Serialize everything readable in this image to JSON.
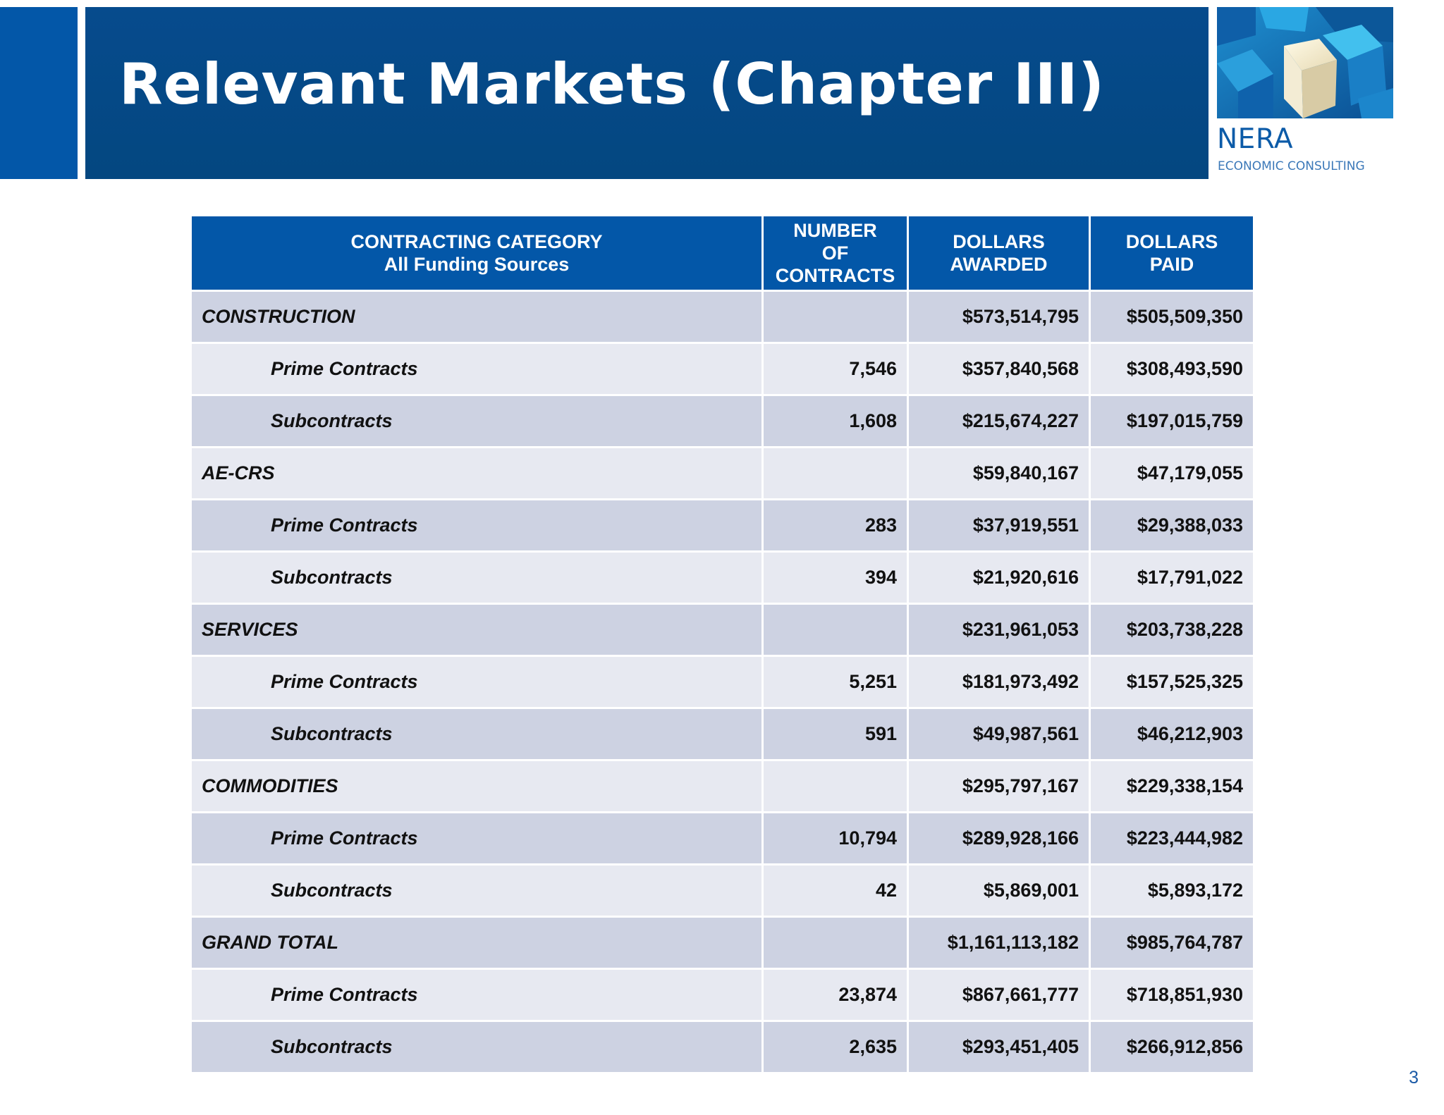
{
  "slide": {
    "title": "Relevant Markets (Chapter III)",
    "page_number": "3"
  },
  "logo": {
    "name": "NERA",
    "subtitle": "ECONOMIC CONSULTING"
  },
  "colors": {
    "title_bar": "#044780",
    "accent_blue": "#0357a8",
    "row_dark": "#cdd2e2",
    "row_light": "#e7e9f1"
  },
  "table": {
    "headers": {
      "category_line1": "CONTRACTING CATEGORY",
      "category_line2": "All Funding Sources",
      "number_line1": "NUMBER",
      "number_line2": "OF",
      "number_line3": "CONTRACTS",
      "awarded_line1": "DOLLARS",
      "awarded_line2": "AWARDED",
      "paid_line1": "DOLLARS",
      "paid_line2": "PAID"
    },
    "rows": [
      {
        "category": "CONSTRUCTION",
        "number": "",
        "awarded": "$573,514,795",
        "paid": "$505,509,350"
      },
      {
        "category": "Prime Contracts",
        "number": "7,546",
        "awarded": "$357,840,568",
        "paid": "$308,493,590"
      },
      {
        "category": "Subcontracts",
        "number": "1,608",
        "awarded": "$215,674,227",
        "paid": "$197,015,759"
      },
      {
        "category": "AE-CRS",
        "number": "",
        "awarded": "$59,840,167",
        "paid": "$47,179,055"
      },
      {
        "category": "Prime Contracts",
        "number": "283",
        "awarded": "$37,919,551",
        "paid": "$29,388,033"
      },
      {
        "category": "Subcontracts",
        "number": "394",
        "awarded": "$21,920,616",
        "paid": "$17,791,022"
      },
      {
        "category": "SERVICES",
        "number": "",
        "awarded": "$231,961,053",
        "paid": "$203,738,228"
      },
      {
        "category": "Prime Contracts",
        "number": "5,251",
        "awarded": "$181,973,492",
        "paid": "$157,525,325"
      },
      {
        "category": "Subcontracts",
        "number": "591",
        "awarded": "$49,987,561",
        "paid": "$46,212,903"
      },
      {
        "category": "COMMODITIES",
        "number": "",
        "awarded": "$295,797,167",
        "paid": "$229,338,154"
      },
      {
        "category": "Prime Contracts",
        "number": "10,794",
        "awarded": "$289,928,166",
        "paid": "$223,444,982"
      },
      {
        "category": "Subcontracts",
        "number": "42",
        "awarded": "$5,869,001",
        "paid": "$5,893,172"
      },
      {
        "category": "GRAND TOTAL",
        "number": "",
        "awarded": "$1,161,113,182",
        "paid": "$985,764,787"
      },
      {
        "category": "Prime Contracts",
        "number": "23,874",
        "awarded": "$867,661,777",
        "paid": "$718,851,930"
      },
      {
        "category": "Subcontracts",
        "number": "2,635",
        "awarded": "$293,451,405",
        "paid": "$266,912,856"
      }
    ]
  }
}
